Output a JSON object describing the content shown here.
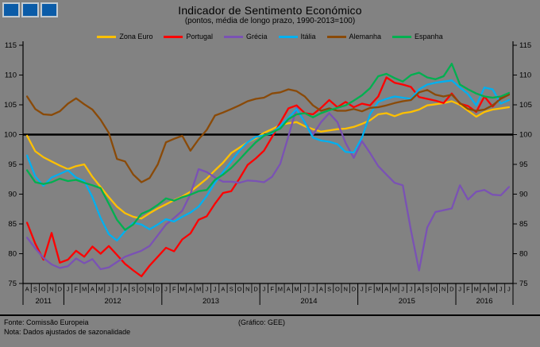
{
  "header": {
    "title": "Indicador de Sentimento  Económico",
    "subtitle": "(pontos, média de longo prazo, 1990-2013=100)"
  },
  "footer": {
    "fonte": "Fonte: Comissão Europeia",
    "nota": "Nota: Dados ajustados de sazonalidade",
    "grafico": "(Gráfico: GEE)"
  },
  "logo": {
    "name": "three-blue-squares-logo",
    "square_color": "#0B5CA8",
    "border_color": "#C2CBD2",
    "square_count": 3
  },
  "chart_data": {
    "type": "line",
    "title": "Indicador de Sentimento  Económico",
    "subtitle": "(pontos, média de longo prazo, 1990-2013=100)",
    "ylim": [
      75,
      115
    ],
    "ytick_step": 5,
    "reference_line": 100,
    "grid": false,
    "legend_position": "top",
    "x_months": [
      "A",
      "S",
      "O",
      "N",
      "D",
      "J",
      "F",
      "M",
      "A",
      "M",
      "J",
      "J",
      "A",
      "S",
      "O",
      "N",
      "D",
      "J",
      "F",
      "M",
      "A",
      "M",
      "J",
      "J",
      "A",
      "S",
      "O",
      "N",
      "D",
      "J",
      "F",
      "M",
      "A",
      "M",
      "J",
      "J",
      "A",
      "S",
      "O",
      "N",
      "D",
      "J",
      "F",
      "M",
      "A",
      "M",
      "J",
      "J",
      "A",
      "S",
      "O",
      "N",
      "D",
      "J",
      "F",
      "M",
      "A",
      "M",
      "J",
      "J"
    ],
    "x_years": [
      {
        "label": "2011",
        "months": 5
      },
      {
        "label": "2012",
        "months": 12
      },
      {
        "label": "2013",
        "months": 12
      },
      {
        "label": "2014",
        "months": 12
      },
      {
        "label": "2015",
        "months": 12
      },
      {
        "label": "2016",
        "months": 7
      }
    ],
    "series": [
      {
        "name": "Zona Euro",
        "color": "#FFC000",
        "values": [
          99.8,
          97.2,
          96.2,
          95.5,
          94.8,
          94.2,
          94.7,
          95.0,
          92.9,
          91.2,
          89.5,
          87.9,
          86.8,
          86.2,
          85.9,
          86.8,
          87.6,
          88.3,
          89.0,
          89.6,
          90.4,
          91.5,
          92.6,
          94.0,
          95.3,
          96.9,
          97.8,
          98.7,
          99.4,
          100.3,
          100.9,
          101.6,
          101.9,
          102.1,
          101.4,
          100.9,
          100.5,
          100.7,
          100.9,
          101.0,
          101.3,
          101.8,
          102.4,
          103.4,
          103.6,
          103.1,
          103.6,
          103.8,
          104.2,
          104.9,
          105.1,
          105.3,
          105.6,
          105.0,
          104.0,
          103.0,
          103.8,
          104.2,
          104.4,
          104.6
        ]
      },
      {
        "name": "Portugal",
        "color": "#FF0000",
        "values": [
          85.2,
          81.7,
          79.0,
          83.5,
          78.5,
          79.0,
          80.5,
          79.5,
          81.2,
          80.0,
          81.3,
          79.8,
          78.3,
          77.2,
          76.2,
          78.0,
          79.5,
          81.0,
          80.4,
          82.4,
          83.4,
          85.7,
          86.3,
          88.4,
          90.2,
          90.5,
          92.6,
          94.9,
          96.0,
          97.3,
          99.6,
          102.0,
          104.4,
          104.9,
          103.6,
          103.4,
          104.5,
          105.8,
          104.6,
          105.5,
          104.6,
          105.2,
          104.9,
          106.4,
          109.6,
          108.7,
          108.4,
          108.0,
          106.3,
          106.0,
          105.7,
          105.3,
          106.9,
          105.2,
          104.8,
          103.8,
          106.4,
          104.7,
          106.2,
          106.8
        ]
      },
      {
        "name": "Grécia",
        "color": "#7A52B4",
        "values": [
          82.7,
          80.9,
          79.3,
          78.2,
          77.6,
          77.9,
          79.2,
          78.4,
          79.1,
          77.4,
          77.7,
          78.6,
          79.5,
          80.0,
          80.5,
          81.3,
          83.1,
          84.9,
          86.0,
          87.2,
          90.0,
          94.2,
          93.7,
          92.8,
          92.1,
          92.1,
          91.9,
          92.3,
          92.2,
          92.0,
          92.9,
          95.1,
          99.7,
          104.5,
          102.1,
          100.0,
          102.1,
          103.6,
          102.1,
          98.6,
          96.1,
          98.9,
          96.9,
          94.7,
          93.3,
          91.9,
          91.5,
          83.9,
          77.2,
          84.4,
          87.0,
          87.3,
          87.6,
          91.5,
          89.1,
          90.4,
          90.7,
          89.9,
          89.8,
          91.2
        ]
      },
      {
        "name": "Itália",
        "color": "#00B0F0",
        "values": [
          96.5,
          93.0,
          91.4,
          92.8,
          93.4,
          94.0,
          92.8,
          92.2,
          89.5,
          86.0,
          83.3,
          82.2,
          83.8,
          85.2,
          84.9,
          84.1,
          84.9,
          85.8,
          85.4,
          86.2,
          86.9,
          87.9,
          89.7,
          91.9,
          93.7,
          95.5,
          97.3,
          98.7,
          99.6,
          99.9,
          100.2,
          101.5,
          102.8,
          104.3,
          102.1,
          99.5,
          99.0,
          98.8,
          98.4,
          97.1,
          97.0,
          99.5,
          103.4,
          105.5,
          106.0,
          106.4,
          106.2,
          106.0,
          107.6,
          108.4,
          108.7,
          108.9,
          109.1,
          107.9,
          106.8,
          104.9,
          107.9,
          107.6,
          105.2,
          105.8
        ]
      },
      {
        "name": "Alemanha",
        "color": "#8A4A08",
        "values": [
          106.4,
          104.3,
          103.4,
          103.3,
          103.9,
          105.2,
          106.1,
          105.1,
          104.2,
          102.5,
          100.3,
          95.9,
          95.5,
          93.3,
          92.0,
          92.7,
          95.0,
          98.7,
          99.3,
          99.8,
          97.3,
          99.2,
          100.8,
          103.2,
          103.7,
          104.3,
          104.9,
          105.6,
          106.0,
          106.2,
          106.9,
          107.1,
          107.6,
          107.3,
          106.4,
          104.9,
          104.0,
          104.4,
          104.0,
          104.0,
          104.3,
          103.9,
          104.5,
          104.6,
          104.9,
          105.3,
          105.6,
          105.8,
          107.1,
          107.5,
          106.7,
          106.4,
          106.7,
          105.3,
          104.3,
          104.0,
          104.2,
          104.9,
          106.0,
          106.7
        ]
      },
      {
        "name": "Espanha",
        "color": "#00B050",
        "values": [
          94.0,
          92.0,
          91.7,
          92.0,
          92.6,
          92.2,
          92.4,
          91.9,
          91.5,
          91.0,
          88.4,
          85.7,
          84.0,
          84.9,
          86.7,
          87.3,
          88.2,
          89.3,
          88.9,
          89.5,
          89.9,
          90.5,
          90.7,
          92.4,
          93.3,
          94.4,
          95.8,
          97.3,
          98.7,
          99.8,
          100.4,
          101.0,
          102.6,
          103.4,
          103.6,
          102.9,
          103.6,
          104.1,
          104.5,
          104.9,
          105.7,
          106.6,
          107.8,
          109.8,
          110.2,
          109.5,
          108.9,
          110.0,
          110.4,
          109.6,
          109.3,
          109.8,
          111.9,
          108.4,
          107.6,
          106.9,
          106.4,
          106.2,
          106.4,
          107.0
        ]
      }
    ]
  }
}
